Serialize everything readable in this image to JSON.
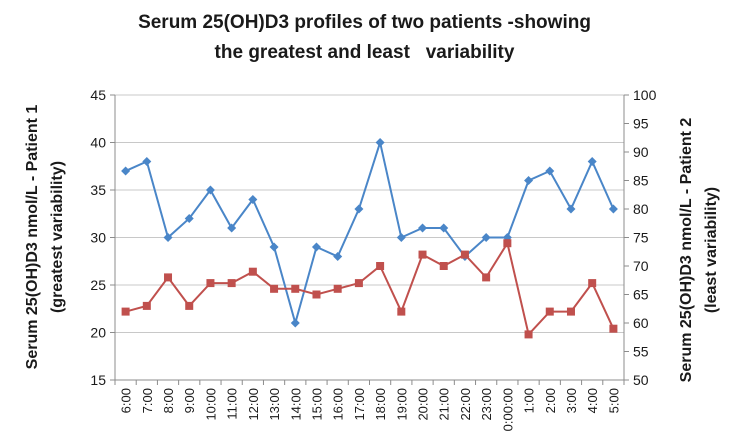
{
  "chart_data": {
    "type": "line",
    "title_lines": [
      "Serum 25(OH)D3 profiles of two patients -showing",
      "the greatest and least   variability"
    ],
    "ylabel_left_lines": [
      "Serum 25(OH)D3 nmol/L - Patient 1",
      "(greatest variability)"
    ],
    "ylabel_right_lines": [
      "Serum 25(OH)D3 nmol/L - Patient 2",
      "(least variability)"
    ],
    "ylim_left": [
      15,
      45
    ],
    "yticks_left": [
      15,
      20,
      25,
      30,
      35,
      40,
      45
    ],
    "ylim_right": [
      50,
      100
    ],
    "yticks_right": [
      50,
      55,
      60,
      65,
      70,
      75,
      80,
      85,
      90,
      95,
      100
    ],
    "grid": true,
    "categories": [
      "6:00",
      "7:00",
      "8:00",
      "9:00",
      "10:00",
      "11:00",
      "12:00",
      "13:00",
      "14:00",
      "15:00",
      "16:00",
      "17:00",
      "18:00",
      "19:00",
      "20:00",
      "21:00",
      "22:00",
      "23:00",
      "0:00:00",
      "1:00",
      "2:00",
      "3:00",
      "4:00",
      "5:00"
    ],
    "series": [
      {
        "axis": "left",
        "color": "#4a86c8",
        "marker": "diamond",
        "values": [
          37,
          38,
          30,
          32,
          35,
          31,
          34,
          29,
          21,
          29,
          28,
          33,
          40,
          30,
          31,
          31,
          28,
          30,
          30,
          36,
          37,
          33,
          38,
          33
        ]
      },
      {
        "axis": "right",
        "color": "#c0504d",
        "marker": "square",
        "values": [
          62,
          63,
          68,
          63,
          67,
          67,
          69,
          66,
          66,
          65,
          66,
          67,
          70,
          62,
          72,
          70,
          72,
          68,
          74,
          58,
          62,
          62,
          67,
          59
        ]
      }
    ]
  }
}
